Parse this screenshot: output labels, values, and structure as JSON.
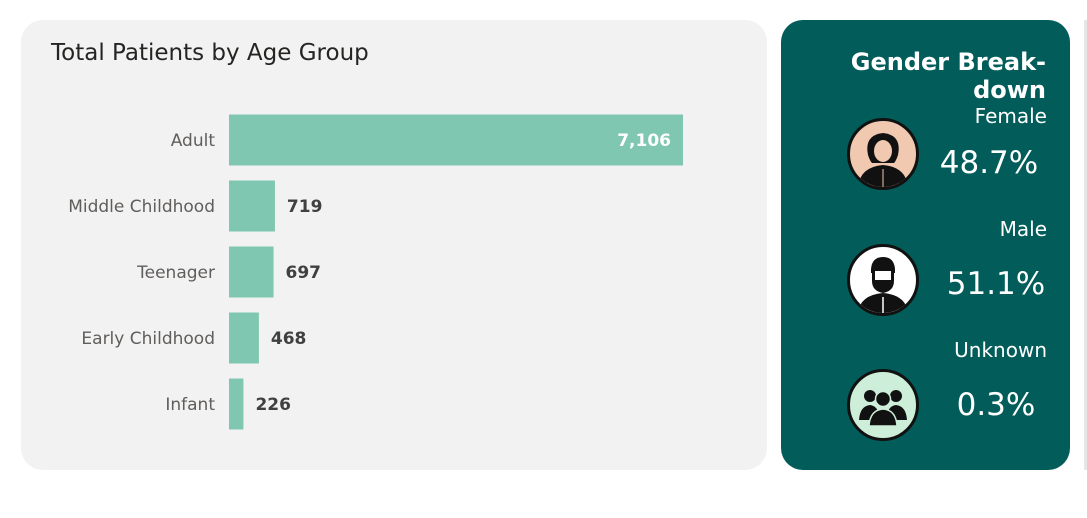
{
  "age_card": {
    "title": "Total Patients by Age Group"
  },
  "chart_data": {
    "type": "bar",
    "orientation": "horizontal",
    "title": "Total Patients by Age Group",
    "categories": [
      "Adult",
      "Middle Childhood",
      "Teenager",
      "Early Childhood",
      "Infant"
    ],
    "values": [
      7106,
      719,
      697,
      468,
      226
    ],
    "value_labels": [
      "7,106",
      "719",
      "697",
      "468",
      "226"
    ],
    "bar_color": "#7fc7b0",
    "xlim": [
      0,
      7106
    ]
  },
  "gender_card": {
    "title": "Gender Break-down",
    "background": "#025c5a",
    "items": [
      {
        "label": "Female",
        "percent": "48.7%",
        "icon": "female-avatar-icon",
        "icon_bg": "#f0c9b0"
      },
      {
        "label": "Male",
        "percent": "51.1%",
        "icon": "male-avatar-icon",
        "icon_bg": "#ffffff"
      },
      {
        "label": "Unknown",
        "percent": "0.3%",
        "icon": "group-avatar-icon",
        "icon_bg": "#cdeed8"
      }
    ]
  }
}
